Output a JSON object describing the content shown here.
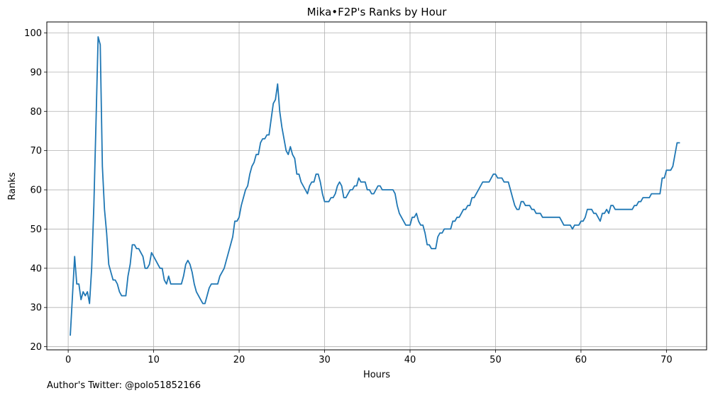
{
  "chart_data": {
    "type": "line",
    "title": "Mika•F2P's Ranks by Hour",
    "xlabel": "Hours",
    "ylabel": "Ranks",
    "xlim": [
      -2.5,
      74.7
    ],
    "ylim": [
      19.2,
      102.8
    ],
    "x_ticks": [
      0,
      10,
      20,
      30,
      40,
      50,
      60,
      70
    ],
    "y_ticks": [
      20,
      30,
      40,
      50,
      60,
      70,
      80,
      90,
      100
    ],
    "grid": true,
    "line_color": "#1f77b4",
    "series": [
      {
        "points": [
          [
            0.25,
            23
          ],
          [
            0.75,
            43
          ],
          [
            1.0,
            36
          ],
          [
            1.25,
            36
          ],
          [
            1.5,
            32
          ],
          [
            1.75,
            34
          ],
          [
            2.0,
            33
          ],
          [
            2.25,
            34
          ],
          [
            2.5,
            31
          ],
          [
            2.75,
            40
          ],
          [
            3.0,
            56
          ],
          [
            3.25,
            77
          ],
          [
            3.5,
            99
          ],
          [
            3.75,
            97
          ],
          [
            4.0,
            66
          ],
          [
            4.25,
            55
          ],
          [
            4.5,
            49
          ],
          [
            4.75,
            41
          ],
          [
            5.0,
            39
          ],
          [
            5.25,
            37
          ],
          [
            5.5,
            37
          ],
          [
            5.75,
            36
          ],
          [
            6.0,
            34
          ],
          [
            6.25,
            33
          ],
          [
            6.5,
            33
          ],
          [
            6.75,
            33
          ],
          [
            7.0,
            38
          ],
          [
            7.25,
            41
          ],
          [
            7.5,
            46
          ],
          [
            7.75,
            46
          ],
          [
            8.0,
            45
          ],
          [
            8.25,
            45
          ],
          [
            8.5,
            44
          ],
          [
            8.75,
            43
          ],
          [
            9.0,
            40
          ],
          [
            9.25,
            40
          ],
          [
            9.5,
            41
          ],
          [
            9.75,
            44
          ],
          [
            10.0,
            43
          ],
          [
            10.25,
            42
          ],
          [
            10.5,
            41
          ],
          [
            10.75,
            40
          ],
          [
            11.0,
            40
          ],
          [
            11.25,
            37
          ],
          [
            11.5,
            36
          ],
          [
            11.75,
            38
          ],
          [
            12.0,
            36
          ],
          [
            12.5,
            36
          ],
          [
            13.0,
            36
          ],
          [
            13.25,
            36
          ],
          [
            13.5,
            38
          ],
          [
            13.75,
            41
          ],
          [
            14.0,
            42
          ],
          [
            14.25,
            41
          ],
          [
            14.5,
            39
          ],
          [
            14.75,
            36
          ],
          [
            15.0,
            34
          ],
          [
            15.25,
            33
          ],
          [
            15.5,
            32
          ],
          [
            15.75,
            31
          ],
          [
            16.0,
            31
          ],
          [
            16.25,
            33
          ],
          [
            16.5,
            35
          ],
          [
            16.75,
            36
          ],
          [
            17.0,
            36
          ],
          [
            17.25,
            36
          ],
          [
            17.5,
            36
          ],
          [
            17.75,
            38
          ],
          [
            18.0,
            39
          ],
          [
            18.25,
            40
          ],
          [
            18.5,
            42
          ],
          [
            18.75,
            44
          ],
          [
            19.0,
            46
          ],
          [
            19.25,
            48
          ],
          [
            19.5,
            52
          ],
          [
            19.75,
            52
          ],
          [
            20.0,
            53
          ],
          [
            20.25,
            56
          ],
          [
            20.5,
            58
          ],
          [
            20.75,
            60
          ],
          [
            21.0,
            61
          ],
          [
            21.25,
            64
          ],
          [
            21.5,
            66
          ],
          [
            21.75,
            67
          ],
          [
            22.0,
            69
          ],
          [
            22.25,
            69
          ],
          [
            22.5,
            72
          ],
          [
            22.75,
            73
          ],
          [
            23.0,
            73
          ],
          [
            23.25,
            74
          ],
          [
            23.5,
            74
          ],
          [
            23.75,
            78
          ],
          [
            24.0,
            82
          ],
          [
            24.25,
            83
          ],
          [
            24.5,
            87
          ],
          [
            24.75,
            80
          ],
          [
            25.0,
            76
          ],
          [
            25.25,
            73
          ],
          [
            25.5,
            70
          ],
          [
            25.75,
            69
          ],
          [
            26.0,
            71
          ],
          [
            26.25,
            69
          ],
          [
            26.5,
            68
          ],
          [
            26.75,
            64
          ],
          [
            27.0,
            64
          ],
          [
            27.25,
            62
          ],
          [
            27.5,
            61
          ],
          [
            27.75,
            60
          ],
          [
            28.0,
            59
          ],
          [
            28.25,
            61
          ],
          [
            28.5,
            62
          ],
          [
            28.75,
            62
          ],
          [
            29.0,
            64
          ],
          [
            29.25,
            64
          ],
          [
            29.5,
            62
          ],
          [
            29.75,
            59
          ],
          [
            30.0,
            57
          ],
          [
            30.25,
            57
          ],
          [
            30.5,
            57
          ],
          [
            30.75,
            58
          ],
          [
            31.0,
            58
          ],
          [
            31.25,
            59
          ],
          [
            31.5,
            61
          ],
          [
            31.75,
            62
          ],
          [
            32.0,
            61
          ],
          [
            32.25,
            58
          ],
          [
            32.5,
            58
          ],
          [
            32.75,
            59
          ],
          [
            33.0,
            60
          ],
          [
            33.25,
            60
          ],
          [
            33.5,
            61
          ],
          [
            33.75,
            61
          ],
          [
            34.0,
            63
          ],
          [
            34.25,
            62
          ],
          [
            34.5,
            62
          ],
          [
            34.75,
            62
          ],
          [
            35.0,
            60
          ],
          [
            35.25,
            60
          ],
          [
            35.5,
            59
          ],
          [
            35.75,
            59
          ],
          [
            36.0,
            60
          ],
          [
            36.25,
            61
          ],
          [
            36.5,
            61
          ],
          [
            36.75,
            60
          ],
          [
            37.0,
            60
          ],
          [
            37.5,
            60
          ],
          [
            38.0,
            60
          ],
          [
            38.25,
            59
          ],
          [
            38.5,
            56
          ],
          [
            38.75,
            54
          ],
          [
            39.0,
            53
          ],
          [
            39.25,
            52
          ],
          [
            39.5,
            51
          ],
          [
            39.75,
            51
          ],
          [
            40.0,
            51
          ],
          [
            40.25,
            53
          ],
          [
            40.5,
            53
          ],
          [
            40.75,
            54
          ],
          [
            41.0,
            52
          ],
          [
            41.25,
            51
          ],
          [
            41.5,
            51
          ],
          [
            41.75,
            49
          ],
          [
            42.0,
            46
          ],
          [
            42.25,
            46
          ],
          [
            42.5,
            45
          ],
          [
            42.75,
            45
          ],
          [
            43.0,
            45
          ],
          [
            43.25,
            48
          ],
          [
            43.5,
            49
          ],
          [
            43.75,
            49
          ],
          [
            44.0,
            50
          ],
          [
            44.25,
            50
          ],
          [
            44.5,
            50
          ],
          [
            44.75,
            50
          ],
          [
            45.0,
            52
          ],
          [
            45.25,
            52
          ],
          [
            45.5,
            53
          ],
          [
            45.75,
            53
          ],
          [
            46.0,
            54
          ],
          [
            46.25,
            55
          ],
          [
            46.5,
            55
          ],
          [
            46.75,
            56
          ],
          [
            47.0,
            56
          ],
          [
            47.25,
            58
          ],
          [
            47.5,
            58
          ],
          [
            47.75,
            59
          ],
          [
            48.0,
            60
          ],
          [
            48.25,
            61
          ],
          [
            48.5,
            62
          ],
          [
            48.75,
            62
          ],
          [
            49.0,
            62
          ],
          [
            49.25,
            62
          ],
          [
            49.5,
            63
          ],
          [
            49.75,
            64
          ],
          [
            50.0,
            64
          ],
          [
            50.25,
            63
          ],
          [
            50.5,
            63
          ],
          [
            50.75,
            63
          ],
          [
            51.0,
            62
          ],
          [
            51.25,
            62
          ],
          [
            51.5,
            62
          ],
          [
            51.75,
            60
          ],
          [
            52.0,
            58
          ],
          [
            52.25,
            56
          ],
          [
            52.5,
            55
          ],
          [
            52.75,
            55
          ],
          [
            53.0,
            57
          ],
          [
            53.25,
            57
          ],
          [
            53.5,
            56
          ],
          [
            53.75,
            56
          ],
          [
            54.0,
            56
          ],
          [
            54.25,
            55
          ],
          [
            54.5,
            55
          ],
          [
            54.75,
            54
          ],
          [
            55.0,
            54
          ],
          [
            55.25,
            54
          ],
          [
            55.5,
            53
          ],
          [
            56.0,
            53
          ],
          [
            56.5,
            53
          ],
          [
            57.0,
            53
          ],
          [
            57.25,
            53
          ],
          [
            57.5,
            53
          ],
          [
            57.75,
            52
          ],
          [
            58.0,
            51
          ],
          [
            58.25,
            51
          ],
          [
            58.5,
            51
          ],
          [
            58.75,
            51
          ],
          [
            59.0,
            50
          ],
          [
            59.25,
            51
          ],
          [
            59.5,
            51
          ],
          [
            59.75,
            51
          ],
          [
            60.0,
            52
          ],
          [
            60.25,
            52
          ],
          [
            60.5,
            53
          ],
          [
            60.75,
            55
          ],
          [
            61.0,
            55
          ],
          [
            61.25,
            55
          ],
          [
            61.5,
            54
          ],
          [
            61.75,
            54
          ],
          [
            62.0,
            53
          ],
          [
            62.25,
            52
          ],
          [
            62.5,
            54
          ],
          [
            62.75,
            54
          ],
          [
            63.0,
            55
          ],
          [
            63.25,
            54
          ],
          [
            63.5,
            56
          ],
          [
            63.75,
            56
          ],
          [
            64.0,
            55
          ],
          [
            64.5,
            55
          ],
          [
            65.0,
            55
          ],
          [
            65.5,
            55
          ],
          [
            66.0,
            55
          ],
          [
            66.25,
            56
          ],
          [
            66.5,
            56
          ],
          [
            66.75,
            57
          ],
          [
            67.0,
            57
          ],
          [
            67.25,
            58
          ],
          [
            67.5,
            58
          ],
          [
            67.75,
            58
          ],
          [
            68.0,
            58
          ],
          [
            68.25,
            59
          ],
          [
            68.5,
            59
          ],
          [
            68.75,
            59
          ],
          [
            69.0,
            59
          ],
          [
            69.25,
            59
          ],
          [
            69.5,
            63
          ],
          [
            69.75,
            63
          ],
          [
            70.0,
            65
          ],
          [
            70.25,
            65
          ],
          [
            70.5,
            65
          ],
          [
            70.75,
            66
          ],
          [
            71.0,
            69
          ],
          [
            71.25,
            72
          ],
          [
            71.5,
            72
          ]
        ]
      }
    ]
  },
  "footer": {
    "credit": "Author's Twitter: @polo51852166"
  }
}
